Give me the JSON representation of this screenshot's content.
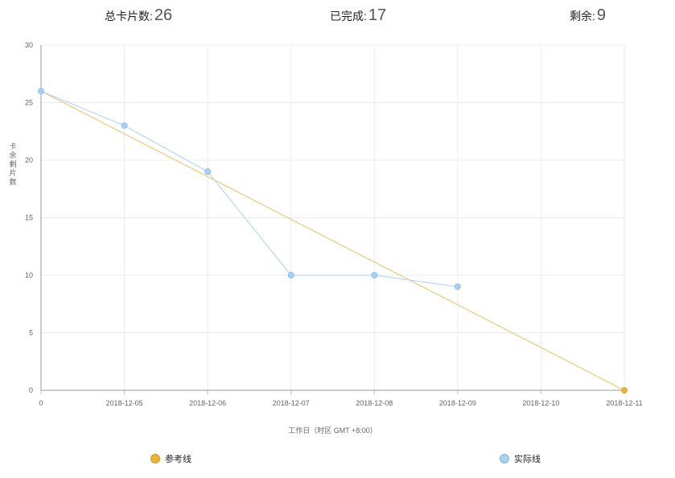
{
  "stats": {
    "total_label": "总卡片数:",
    "total_value": "26",
    "done_label": "已完成:",
    "done_value": "17",
    "left_label": "剩余:",
    "left_value": "9"
  },
  "chart_data": {
    "type": "line",
    "title": "",
    "xlabel": "工作日（时区 GMT +8:00）",
    "ylabel": "剩余卡片数",
    "categories": [
      "0",
      "2018-12-05",
      "2018-12-06",
      "2018-12-07",
      "2018-12-08",
      "2018-12-09",
      "2018-12-10",
      "2018-12-11"
    ],
    "ylim": [
      0,
      30
    ],
    "yticks": [
      0,
      5,
      10,
      15,
      20,
      25,
      30
    ],
    "grid": true,
    "legend_position": "bottom",
    "series": [
      {
        "name": "参考线",
        "color": "#e8b23b",
        "line_color": "#ebc97e",
        "x": [
          "0",
          "2018-12-11"
        ],
        "values": [
          26,
          0
        ]
      },
      {
        "name": "实际线",
        "color": "#a9d1ef",
        "line_color": "#b5d9f2",
        "x": [
          "0",
          "2018-12-05",
          "2018-12-06",
          "2018-12-07",
          "2018-12-08",
          "2018-12-09"
        ],
        "values": [
          26,
          23,
          19,
          10,
          10,
          9
        ]
      }
    ]
  }
}
